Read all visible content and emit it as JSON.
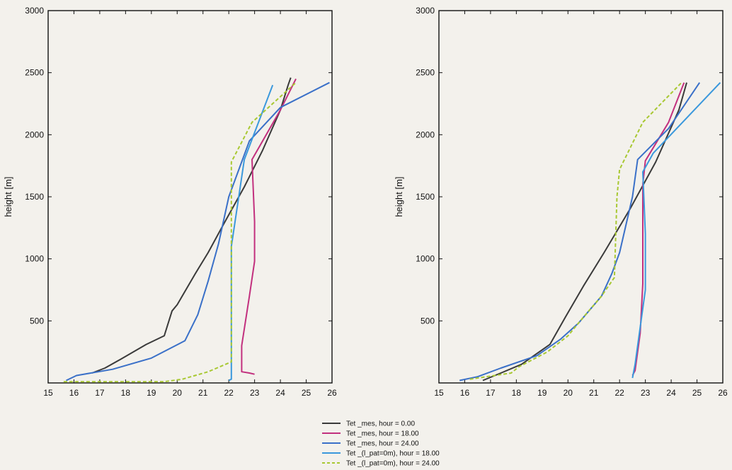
{
  "background_text": [],
  "chart_data": [
    {
      "type": "line",
      "ylabel": "height [m]",
      "xlabel": "",
      "xlim": [
        15,
        26
      ],
      "ylim": [
        0,
        3000
      ],
      "xticks": [
        15,
        16,
        17,
        18,
        19,
        20,
        21,
        22,
        23,
        24,
        25,
        26
      ],
      "yticks": [
        500,
        1000,
        1500,
        2000,
        2500,
        3000
      ],
      "series": [
        {
          "name": "Tet _mes, hour = 0.00",
          "color": "#3a3a3a",
          "points": [
            [
              16.7,
              80
            ],
            [
              17.2,
              120
            ],
            [
              17.8,
              190
            ],
            [
              18.8,
              310
            ],
            [
              19.5,
              380
            ],
            [
              19.8,
              580
            ],
            [
              20.0,
              630
            ],
            [
              20.7,
              880
            ],
            [
              21.2,
              1050
            ],
            [
              21.8,
              1280
            ],
            [
              22.6,
              1580
            ],
            [
              23.3,
              1870
            ],
            [
              24.0,
              2200
            ],
            [
              24.3,
              2400
            ],
            [
              24.4,
              2460
            ]
          ]
        },
        {
          "name": "Tet _mes, hour = 18.00",
          "color": "#c2307e",
          "points": [
            [
              23.0,
              70
            ],
            [
              22.8,
              80
            ],
            [
              22.5,
              90
            ],
            [
              22.5,
              300
            ],
            [
              22.8,
              700
            ],
            [
              23.0,
              980
            ],
            [
              23.0,
              1300
            ],
            [
              22.9,
              1800
            ],
            [
              24.0,
              2200
            ],
            [
              24.6,
              2450
            ]
          ]
        },
        {
          "name": "Tet _mes, hour = 24.00",
          "color": "#3a70c8",
          "points": [
            [
              15.7,
              20
            ],
            [
              16.1,
              60
            ],
            [
              17.5,
              110
            ],
            [
              19.0,
              200
            ],
            [
              20.3,
              340
            ],
            [
              20.8,
              550
            ],
            [
              21.2,
              820
            ],
            [
              21.6,
              1120
            ],
            [
              22.0,
              1500
            ],
            [
              22.8,
              1950
            ],
            [
              24.0,
              2220
            ],
            [
              25.9,
              2420
            ]
          ]
        },
        {
          "name": "Tet _(l_pat=0m), hour = 18.00",
          "color": "#3a98dc",
          "points": [
            [
              22.0,
              20
            ],
            [
              22.1,
              30
            ],
            [
              22.1,
              1100
            ],
            [
              22.6,
              1800
            ],
            [
              23.7,
              2400
            ]
          ]
        },
        {
          "name": "Tet _(l_pat=0m), hour = 24.00",
          "color": "#a8c832",
          "dashed": true,
          "points": [
            [
              15.6,
              10
            ],
            [
              19.5,
              10
            ],
            [
              20.2,
              30
            ],
            [
              21.2,
              90
            ],
            [
              22.1,
              170
            ],
            [
              22.1,
              1780
            ],
            [
              22.9,
              2100
            ],
            [
              24.6,
              2420
            ]
          ]
        }
      ]
    },
    {
      "type": "line",
      "ylabel": "height [m]",
      "xlabel": "",
      "xlim": [
        15,
        26
      ],
      "ylim": [
        0,
        3000
      ],
      "xticks": [
        15,
        16,
        17,
        18,
        19,
        20,
        21,
        22,
        23,
        24,
        25,
        26
      ],
      "yticks": [
        500,
        1000,
        1500,
        2000,
        2500,
        3000
      ],
      "series": [
        {
          "name": "Tet _mes, hour = 0.00",
          "color": "#3a3a3a",
          "points": [
            [
              16.7,
              20
            ],
            [
              17.4,
              80
            ],
            [
              18.2,
              150
            ],
            [
              19.3,
              310
            ],
            [
              19.9,
              530
            ],
            [
              20.6,
              780
            ],
            [
              21.4,
              1050
            ],
            [
              22.4,
              1400
            ],
            [
              23.4,
              1780
            ],
            [
              24.3,
              2200
            ],
            [
              24.6,
              2420
            ]
          ]
        },
        {
          "name": "Tet _mes, hour = 18.00",
          "color": "#c2307e",
          "points": [
            [
              22.5,
              60
            ],
            [
              22.6,
              100
            ],
            [
              22.8,
              400
            ],
            [
              22.9,
              800
            ],
            [
              22.9,
              1200
            ],
            [
              22.9,
              1600
            ],
            [
              23.0,
              1790
            ],
            [
              23.9,
              2100
            ],
            [
              24.5,
              2420
            ]
          ]
        },
        {
          "name": "Tet _mes, hour = 24.00",
          "color": "#3a70c8",
          "points": [
            [
              15.8,
              20
            ],
            [
              16.5,
              50
            ],
            [
              17.4,
              120
            ],
            [
              18.8,
              220
            ],
            [
              19.7,
              350
            ],
            [
              20.4,
              480
            ],
            [
              21.3,
              700
            ],
            [
              21.7,
              880
            ],
            [
              22.0,
              1050
            ],
            [
              22.5,
              1500
            ],
            [
              22.7,
              1800
            ],
            [
              23.9,
              2050
            ],
            [
              25.1,
              2420
            ]
          ]
        },
        {
          "name": "Tet _(l_pat=0m), hour = 18.00",
          "color": "#3a98dc",
          "points": [
            [
              22.5,
              40
            ],
            [
              22.6,
              150
            ],
            [
              23.0,
              750
            ],
            [
              23.0,
              1200
            ],
            [
              22.9,
              1700
            ],
            [
              23.3,
              1850
            ],
            [
              25.9,
              2420
            ]
          ]
        },
        {
          "name": "Tet _(l_pat=0m), hour = 24.00",
          "color": "#a8c832",
          "dashed": true,
          "points": [
            [
              16.2,
              30
            ],
            [
              17.8,
              80
            ],
            [
              18.1,
              130
            ],
            [
              19.2,
              250
            ],
            [
              20.0,
              380
            ],
            [
              20.6,
              530
            ],
            [
              21.3,
              700
            ],
            [
              21.8,
              850
            ],
            [
              21.9,
              1500
            ],
            [
              22.0,
              1720
            ],
            [
              22.9,
              2100
            ],
            [
              24.4,
              2420
            ]
          ]
        }
      ]
    }
  ],
  "legend": [
    {
      "label": "Tet _mes, hour =  0.00",
      "color": "#3a3a3a",
      "dashed": false
    },
    {
      "label": "Tet _mes, hour = 18.00",
      "color": "#c2307e",
      "dashed": false
    },
    {
      "label": "Tet _mes, hour = 24.00",
      "color": "#3a70c8",
      "dashed": false
    },
    {
      "label": "Tet _(l_pat=0m), hour = 18.00",
      "color": "#3a98dc",
      "dashed": false
    },
    {
      "label": "Tet _(l_pat=0m), hour = 24.00",
      "color": "#a8c832",
      "dashed": true
    }
  ]
}
